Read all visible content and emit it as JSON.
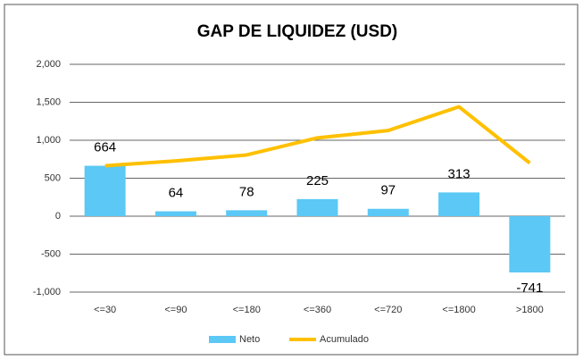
{
  "chart_data": {
    "type": "bar",
    "title": "GAP DE LIQUIDEZ (USD)",
    "categories": [
      "<=30",
      "<=90",
      "<=180",
      "<=360",
      "<=720",
      "<=1800",
      ">1800"
    ],
    "series": [
      {
        "name": "Neto",
        "type": "bar",
        "color": "#5bc8f5",
        "values": [
          664,
          64,
          78,
          225,
          97,
          313,
          -741
        ]
      },
      {
        "name": "Acumulado",
        "type": "line",
        "color": "#ffc000",
        "values": [
          664,
          728,
          806,
          1031,
          1128,
          1441,
          700
        ]
      }
    ],
    "ylim": [
      -1000,
      2000
    ],
    "yticks": [
      {
        "value": -1000,
        "label": "-1,000"
      },
      -500,
      0,
      500,
      {
        "value": 1000,
        "label": "1,000"
      },
      {
        "value": 1500,
        "label": "1,500"
      },
      {
        "value": 2000,
        "label": "2,000"
      }
    ],
    "grid": true,
    "legend": "bottom"
  }
}
